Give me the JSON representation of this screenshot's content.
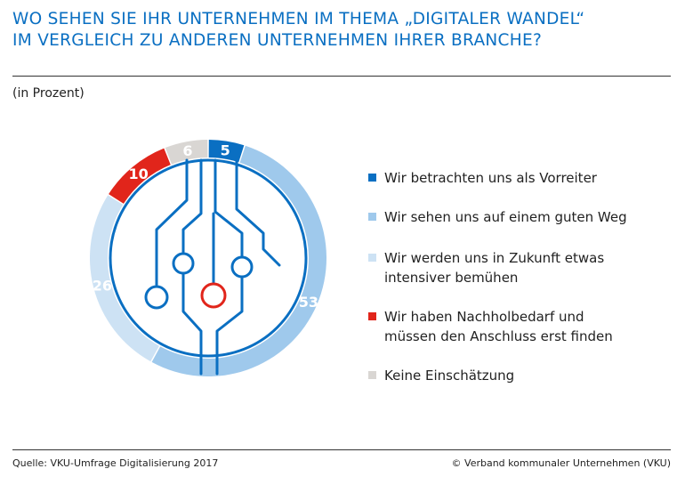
{
  "title_line1": "WO SEHEN SIE IHR UNTERNEHMEN IM THEMA „DIGITALER WANDEL“",
  "title_line2": "IM VERGLEICH ZU ANDEREN UNTERNEHMEN IHRER BRANCHE?",
  "subtitle": "(in Prozent)",
  "source": "Quelle: VKU-Umfrage Digitalisierung 2017",
  "copyright": "© Verband kommunaler Unternehmen (VKU)",
  "colors": {
    "accent": "#0a6fc2",
    "highlight": "#e1251b",
    "ring_bg": "#ffffff"
  },
  "chart_data": {
    "type": "pie",
    "variant": "donut",
    "unit": "%",
    "slices": [
      {
        "label": "Wir betrachten uns als Vorreiter",
        "value": 5,
        "color": "#0a6fc2",
        "value_text_color": "#ffffff"
      },
      {
        "label": "Wir sehen uns auf einem guten Weg",
        "value": 53,
        "color": "#9fc9ec",
        "value_text_color": "#ffffff"
      },
      {
        "label": "Wir werden uns in Zukunft etwas intensiver bemühen",
        "value": 26,
        "color": "#cde2f4",
        "value_text_color": "#ffffff"
      },
      {
        "label": "Wir haben Nachholbedarf und müssen den Anschluss erst finden",
        "value": 10,
        "color": "#e1251b",
        "value_text_color": "#ffffff"
      },
      {
        "label": "Keine Einschätzung",
        "value": 6,
        "color": "#d9d6d3",
        "value_text_color": "#ffffff"
      }
    ],
    "legend_position": "right",
    "center_graphic": "circuit-icon"
  }
}
